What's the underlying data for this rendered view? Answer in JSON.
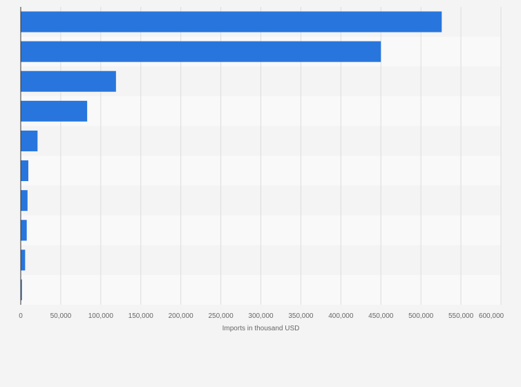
{
  "chart_data": {
    "type": "bar",
    "orientation": "horizontal",
    "title": "",
    "xlabel": "Imports in thousand USD",
    "ylabel": "",
    "categories": [
      "",
      "",
      "",
      "",
      "",
      "",
      "",
      "",
      "",
      ""
    ],
    "values": [
      526000,
      450000,
      119000,
      83000,
      21000,
      9500,
      8500,
      7500,
      5500,
      1500
    ],
    "xlim": [
      0,
      600000
    ],
    "xticks": [
      0,
      50000,
      100000,
      150000,
      200000,
      250000,
      300000,
      350000,
      400000,
      450000,
      500000,
      550000,
      600000
    ],
    "xtick_labels": [
      "0",
      "50,000",
      "100,000",
      "150,000",
      "200,000",
      "250,000",
      "300,000",
      "350,000",
      "400,000",
      "450,000",
      "500,000",
      "550,000",
      "600,000"
    ],
    "grid": true,
    "legend": "none",
    "bar_color": "#2876dd"
  }
}
